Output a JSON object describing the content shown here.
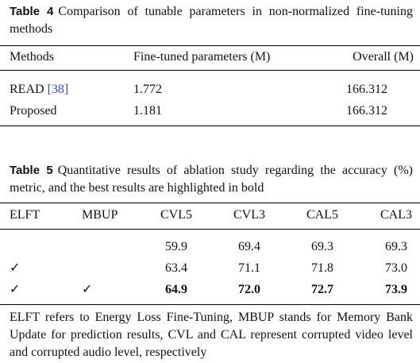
{
  "table4": {
    "label": "Table 4",
    "caption": "Comparison of tunable parameters in non-normalized fine-tuning methods",
    "header": [
      "Methods",
      "Fine-tuned parameters (M)",
      "Overall (M)"
    ],
    "rows": [
      {
        "method": "READ",
        "ref": "[38]",
        "params": "1.772",
        "overall": "166.312"
      },
      {
        "method": "Proposed",
        "params": "1.181",
        "overall": "166.312"
      }
    ]
  },
  "table5": {
    "label": "Table 5",
    "caption": "Quantitative results of ablation study regarding the accuracy (%) metric, and the best results are highlighted in bold",
    "header": [
      "ELFT",
      "MBUP",
      "CVL5",
      "CVL3",
      "CAL5",
      "CAL3"
    ],
    "rows": [
      {
        "values": [
          "59.9",
          "69.4",
          "69.3",
          "69.3"
        ],
        "bold": false
      },
      {
        "elft": "✓",
        "values": [
          "63.4",
          "71.1",
          "71.8",
          "73.0"
        ],
        "bold": false
      },
      {
        "elft": "✓",
        "mbup": "✓",
        "values": [
          "64.9",
          "72.0",
          "72.7",
          "73.9"
        ],
        "bold": true
      }
    ],
    "footnote": "ELFT refers to Energy Loss Fine-Tuning, MBUP stands for Memory Bank Update for prediction results, CVL and CAL represent corrupted video level and corrupted audio level, respectively"
  }
}
